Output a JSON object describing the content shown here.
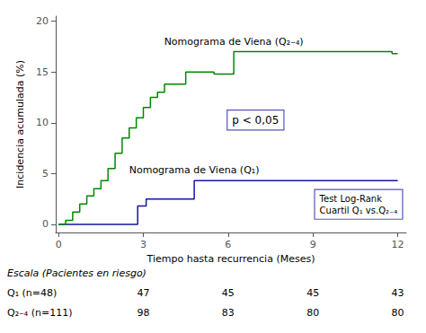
{
  "chart_data": {
    "type": "line",
    "xlabel": "Tiempo hasta recurrencia (Meses)",
    "ylabel": "Incidencia acumulada (%)",
    "xlim": [
      -0.1,
      12.3
    ],
    "ylim": [
      -0.8,
      20.5
    ],
    "xticks": [
      0,
      3,
      6,
      9,
      12
    ],
    "yticks": [
      0,
      5,
      10,
      15,
      20
    ],
    "grid": false,
    "series": [
      {
        "name": "Nomograma de Viena (Q₁)",
        "color": "#1515a0",
        "x": [
          0.0,
          2.8,
          2.8,
          3.1,
          3.1,
          4.8,
          4.8,
          12.0
        ],
        "values": [
          0.0,
          0.0,
          1.8,
          1.8,
          2.5,
          2.5,
          4.3,
          4.3
        ]
      },
      {
        "name": "Nomograma de Viena (Q₂₋₄)",
        "color": "#008800",
        "x": [
          0.0,
          0.25,
          0.25,
          0.5,
          0.5,
          0.75,
          0.75,
          1.0,
          1.0,
          1.25,
          1.25,
          1.5,
          1.5,
          1.75,
          1.75,
          2.0,
          2.0,
          2.25,
          2.25,
          2.5,
          2.5,
          2.75,
          2.75,
          3.0,
          3.0,
          3.25,
          3.25,
          3.5,
          3.5,
          3.75,
          3.75,
          4.5,
          4.5,
          5.5,
          5.5,
          6.2,
          6.2,
          11.8,
          11.8,
          12.0
        ],
        "values": [
          0.0,
          0.0,
          0.4,
          0.4,
          1.2,
          1.2,
          2.0,
          2.0,
          2.8,
          2.8,
          3.5,
          3.5,
          4.3,
          4.3,
          5.5,
          5.5,
          7.0,
          7.0,
          8.5,
          8.5,
          9.5,
          9.5,
          10.5,
          10.5,
          11.5,
          11.5,
          12.5,
          12.5,
          13.0,
          13.0,
          13.8,
          13.8,
          15.0,
          15.0,
          14.8,
          14.8,
          17.0,
          17.0,
          16.8,
          16.8
        ]
      }
    ],
    "annotations": [
      "p < 0,05",
      "Test Log-Rank\nCuartil Q₁ vs.Q₂₋₄"
    ],
    "risk_table": {
      "title": "Escala (Pacientes en riesgo)",
      "times": [
        3,
        6,
        9,
        12
      ],
      "rows": [
        {
          "name": "Q₁ (n=48)",
          "values": [
            47,
            45,
            45,
            43
          ]
        },
        {
          "name": "Q₂₋₄ (n=111)",
          "values": [
            98,
            83,
            80,
            80
          ]
        }
      ]
    }
  }
}
